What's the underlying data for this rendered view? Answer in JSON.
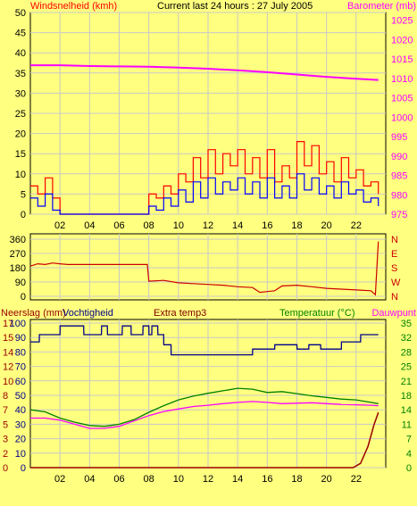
{
  "title": "Current last 24 hours : 27 July 2005",
  "colors": {
    "background": "#ffff80",
    "plot_bg": "#ffff80",
    "grid": "#c8c8c8",
    "axis": "#000000",
    "wind_gust": "#ff0000",
    "wind_avg": "#0000ff",
    "barometer": "#ff00ff",
    "direction": "#cc0000",
    "rain": "#990000",
    "humidity": "#00008b",
    "temperature": "#008000",
    "dewpoint": "#ff00ff"
  },
  "chart_data": [
    {
      "type": "line",
      "labels": {
        "left": "Windsnelheid (kmh)",
        "right": "Barometer (mb)"
      },
      "x_ticks": [
        "02",
        "04",
        "06",
        "08",
        "10",
        "12",
        "14",
        "16",
        "18",
        "20",
        "22"
      ],
      "y_left_ticks": [
        "0",
        "5",
        "10",
        "15",
        "20",
        "25",
        "30",
        "35",
        "40",
        "45",
        "50"
      ],
      "y_right_ticks": [
        "975",
        "980",
        "985",
        "990",
        "995",
        "1000",
        "1005",
        "1010",
        "1015",
        "1020",
        "1025"
      ],
      "ylim_left": [
        0,
        50
      ],
      "ylim_right": [
        975,
        1027
      ],
      "grid": true,
      "series": [
        {
          "name": "Windsnelheid (kmh)",
          "axis": "left",
          "x": [
            0.0,
            0.5,
            1.0,
            1.5,
            2.0,
            2.5,
            3.0,
            5.0,
            7.0,
            7.5,
            8.0,
            8.5,
            9.0,
            9.5,
            10.0,
            10.5,
            11.0,
            11.5,
            12.0,
            12.5,
            13.0,
            13.5,
            14.0,
            14.5,
            15.0,
            15.5,
            16.0,
            16.5,
            17.0,
            17.5,
            18.0,
            18.5,
            19.0,
            19.5,
            20.0,
            20.5,
            21.0,
            21.5,
            22.0,
            22.5,
            23.0,
            23.5
          ],
          "y": [
            7,
            5,
            9,
            4,
            0,
            0,
            0,
            0,
            0,
            0,
            5,
            4,
            7,
            5,
            10,
            8,
            14,
            9,
            16,
            10,
            15,
            12,
            16,
            10,
            14,
            9,
            16,
            8,
            12,
            9,
            18,
            12,
            17,
            10,
            13,
            8,
            14,
            9,
            11,
            7,
            8,
            5
          ]
        },
        {
          "name": "Windsnelheid gemiddeld",
          "axis": "left",
          "x": [
            0.0,
            0.5,
            1.0,
            1.5,
            2.0,
            2.5,
            3.0,
            5.0,
            7.0,
            7.5,
            8.0,
            8.5,
            9.0,
            9.5,
            10.0,
            10.5,
            11.0,
            11.5,
            12.0,
            12.5,
            13.0,
            13.5,
            14.0,
            14.5,
            15.0,
            15.5,
            16.0,
            16.5,
            17.0,
            17.5,
            18.0,
            18.5,
            19.0,
            19.5,
            20.0,
            20.5,
            21.0,
            21.5,
            22.0,
            22.5,
            23.0,
            23.5
          ],
          "y": [
            4,
            2,
            5,
            1,
            0,
            0,
            0,
            0,
            0,
            0,
            2,
            1,
            4,
            2,
            6,
            3,
            8,
            4,
            9,
            5,
            8,
            6,
            9,
            5,
            8,
            4,
            9,
            4,
            7,
            4,
            10,
            6,
            9,
            5,
            7,
            4,
            8,
            5,
            6,
            3,
            4,
            2
          ]
        },
        {
          "name": "Barometer (mb)",
          "axis": "right",
          "x": [
            0,
            2,
            4,
            6,
            8,
            10,
            12,
            14,
            16,
            18,
            20,
            22,
            23.5
          ],
          "y": [
            1013.4,
            1013.4,
            1013.2,
            1013.1,
            1013.0,
            1012.8,
            1012.5,
            1012.1,
            1011.6,
            1011.0,
            1010.4,
            1009.9,
            1009.6
          ]
        }
      ]
    },
    {
      "type": "line",
      "y_ticks": [
        "0",
        "90",
        "180",
        "270",
        "360"
      ],
      "y_right_ticks": [
        "N",
        "W",
        "S",
        "E",
        "N"
      ],
      "ylim": [
        0,
        360
      ],
      "grid": true,
      "series": [
        {
          "name": "Windrichting",
          "x": [
            0,
            0.5,
            1,
            1.5,
            2,
            2.5,
            3,
            4,
            5,
            6,
            7,
            7.9,
            8.0,
            9,
            10,
            11,
            12,
            13,
            14,
            15,
            15.5,
            16,
            16.5,
            17,
            18,
            19,
            20,
            21,
            22,
            23,
            23.3,
            23.5
          ],
          "y": [
            190,
            205,
            200,
            210,
            205,
            200,
            200,
            200,
            200,
            200,
            200,
            200,
            95,
            100,
            85,
            80,
            75,
            70,
            60,
            55,
            25,
            30,
            35,
            65,
            70,
            60,
            50,
            45,
            40,
            35,
            10,
            345
          ]
        }
      ]
    },
    {
      "type": "line",
      "labels": {
        "rain": "Neerslag (mm)",
        "humidity": "Vochtigheid",
        "extra": "Extra temp3",
        "temperature": "Temperatuur (°C)",
        "dewpoint": "Dauwpunt"
      },
      "x_ticks": [
        "02",
        "04",
        "06",
        "08",
        "10",
        "12",
        "14",
        "16",
        "18",
        "20",
        "22"
      ],
      "rain_ticks": [
        "0",
        "2",
        "3",
        "5",
        "7",
        "8",
        "10",
        "12",
        "14",
        "15",
        "17"
      ],
      "humidity_ticks": [
        "0",
        "10",
        "20",
        "30",
        "40",
        "50",
        "60",
        "70",
        "80",
        "90",
        "100"
      ],
      "temp_ticks": [
        "0",
        "4",
        "7",
        "11",
        "14",
        "18",
        "21",
        "25",
        "28",
        "32",
        "35"
      ],
      "ylim_rain": [
        0,
        17
      ],
      "ylim_humidity": [
        0,
        100
      ],
      "ylim_temp": [
        0,
        35
      ],
      "grid": true,
      "series": [
        {
          "name": "Neerslag (mm)",
          "axis": "rain",
          "x": [
            0,
            21.8,
            22.3,
            22.8,
            23.2,
            23.5
          ],
          "y": [
            0,
            0,
            0.5,
            2.5,
            5.0,
            6.5
          ]
        },
        {
          "name": "Vochtigheid",
          "axis": "humidity",
          "x": [
            0,
            0.6,
            0.61,
            1.5,
            1.51,
            2.0,
            2.01,
            3.6,
            3.61,
            4.8,
            4.81,
            5.2,
            5.21,
            6.2,
            6.21,
            6.8,
            6.81,
            7.6,
            7.61,
            8.0,
            8.01,
            8.2,
            8.21,
            8.6,
            8.61,
            9.0,
            9.01,
            9.5,
            9.51,
            10.2,
            10.21,
            15.0,
            15.01,
            16.5,
            16.51,
            18.0,
            18.01,
            18.8,
            18.81,
            19.6,
            19.61,
            21.0,
            21.01,
            22.3,
            22.31,
            23.5
          ],
          "y": [
            87,
            87,
            92,
            92,
            92,
            92,
            98,
            98,
            92,
            92,
            98,
            98,
            92,
            92,
            98,
            98,
            92,
            92,
            98,
            98,
            92,
            92,
            98,
            98,
            92,
            92,
            85,
            85,
            78,
            78,
            78,
            78,
            82,
            82,
            85,
            85,
            82,
            82,
            85,
            85,
            82,
            82,
            87,
            87,
            92,
            92
          ]
        },
        {
          "name": "Temperatuur (°C)",
          "axis": "temp",
          "x": [
            0,
            1,
            2,
            3,
            4,
            5,
            6,
            7,
            8,
            9,
            10,
            11,
            12,
            13,
            14,
            15,
            16,
            17,
            18,
            19,
            20,
            21,
            22,
            23,
            23.5
          ],
          "y": [
            14,
            13.5,
            12,
            11,
            10.2,
            10,
            10.5,
            11.6,
            13.4,
            15,
            16.4,
            17.3,
            18,
            18.6,
            19.2,
            19,
            18.2,
            18.4,
            17.9,
            17.4,
            17,
            16.6,
            16.4,
            15.8,
            15.5
          ]
        },
        {
          "name": "Dauwpunt",
          "axis": "temp",
          "x": [
            0,
            1,
            2,
            3,
            4,
            5,
            6,
            7,
            8,
            9,
            10,
            11,
            12,
            13,
            14,
            15,
            16,
            17,
            18,
            19,
            20,
            21,
            22,
            23,
            23.5
          ],
          "y": [
            12,
            12,
            11.5,
            10.5,
            9.5,
            9.5,
            10,
            11.3,
            12.6,
            13.6,
            14.2,
            14.8,
            15.1,
            15.5,
            15.8,
            16,
            15.8,
            15.5,
            15.6,
            15.7,
            15.5,
            15.3,
            15.2,
            15.1,
            15.0
          ]
        }
      ]
    }
  ]
}
